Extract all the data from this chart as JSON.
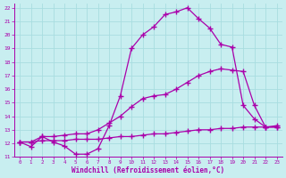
{
  "xlabel": "Windchill (Refroidissement éolien,°C)",
  "bg_color": "#c8eef0",
  "line_color": "#aa00aa",
  "grid_color": "#a8dde0",
  "xlim": [
    -0.5,
    23.5
  ],
  "ylim": [
    11,
    22.3
  ],
  "xticks": [
    0,
    1,
    2,
    3,
    4,
    5,
    6,
    7,
    8,
    9,
    10,
    11,
    12,
    13,
    14,
    15,
    16,
    17,
    18,
    19,
    20,
    21,
    22,
    23
  ],
  "yticks": [
    11,
    12,
    13,
    14,
    15,
    16,
    17,
    18,
    19,
    20,
    21,
    22
  ],
  "line1_x": [
    0,
    1,
    2,
    3,
    4,
    5,
    6,
    7,
    8,
    9,
    10,
    11,
    12,
    13,
    14,
    15,
    16,
    17,
    18,
    19,
    20,
    21,
    22,
    23
  ],
  "line1_y": [
    12.1,
    11.75,
    12.5,
    12.1,
    11.8,
    11.2,
    11.2,
    11.6,
    13.3,
    15.5,
    19.0,
    20.0,
    20.6,
    21.5,
    21.7,
    22.0,
    21.2,
    20.5,
    19.3,
    19.1,
    14.8,
    13.8,
    13.2,
    13.2
  ],
  "line2_x": [
    0,
    1,
    2,
    3,
    4,
    5,
    6,
    7,
    8,
    9,
    10,
    11,
    12,
    13,
    14,
    15,
    16,
    17,
    18,
    19,
    20,
    21,
    22,
    23
  ],
  "line2_y": [
    12.1,
    12.1,
    12.5,
    12.5,
    12.6,
    12.7,
    12.7,
    13.0,
    13.5,
    14.0,
    14.7,
    15.3,
    15.5,
    15.6,
    16.0,
    16.5,
    17.0,
    17.3,
    17.5,
    17.4,
    17.3,
    14.8,
    13.2,
    13.2
  ],
  "line3_x": [
    0,
    1,
    2,
    3,
    4,
    5,
    6,
    7,
    8,
    9,
    10,
    11,
    12,
    13,
    14,
    15,
    16,
    17,
    18,
    19,
    20,
    21,
    22,
    23
  ],
  "line3_y": [
    12.1,
    12.1,
    12.2,
    12.2,
    12.2,
    12.3,
    12.3,
    12.3,
    12.4,
    12.5,
    12.5,
    12.6,
    12.7,
    12.7,
    12.8,
    12.9,
    13.0,
    13.0,
    13.1,
    13.1,
    13.2,
    13.2,
    13.2,
    13.3
  ]
}
